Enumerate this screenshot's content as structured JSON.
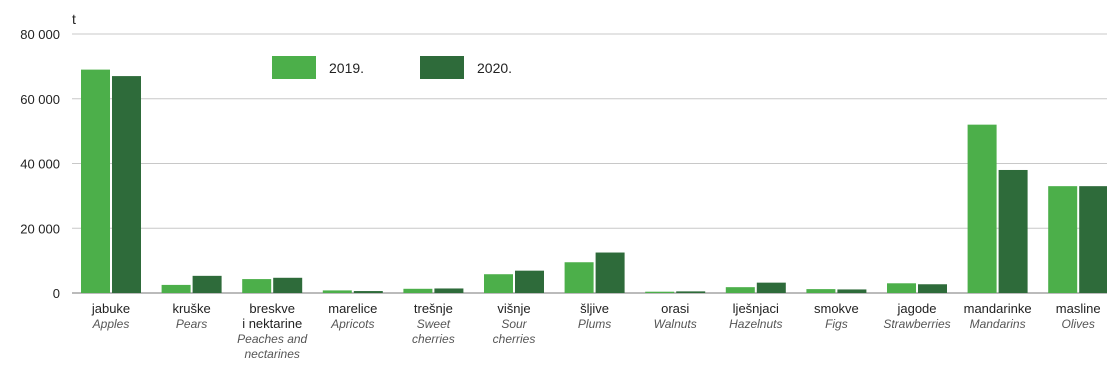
{
  "chart_data": {
    "type": "bar",
    "unit_label": "t",
    "ylim": [
      0,
      80000
    ],
    "yticks": [
      {
        "value": 0,
        "label": "0"
      },
      {
        "value": 20000,
        "label": "20 000"
      },
      {
        "value": 40000,
        "label": "40 000"
      },
      {
        "value": 60000,
        "label": "60 000"
      },
      {
        "value": 80000,
        "label": "80 000"
      }
    ],
    "grid": true,
    "legend_position": "top-center",
    "categories": [
      {
        "hr": [
          "jabuke"
        ],
        "en": [
          "Apples"
        ]
      },
      {
        "hr": [
          "kruške"
        ],
        "en": [
          "Pears"
        ]
      },
      {
        "hr": [
          "breskve",
          "i nektarine"
        ],
        "en": [
          "Peaches and",
          "nectarines"
        ]
      },
      {
        "hr": [
          "marelice"
        ],
        "en": [
          "Apricots"
        ]
      },
      {
        "hr": [
          "trešnje"
        ],
        "en": [
          "Sweet",
          "cherries"
        ]
      },
      {
        "hr": [
          "višnje"
        ],
        "en": [
          "Sour",
          "cherries"
        ]
      },
      {
        "hr": [
          "šljive"
        ],
        "en": [
          "Plums"
        ]
      },
      {
        "hr": [
          "orasi"
        ],
        "en": [
          "Walnuts"
        ]
      },
      {
        "hr": [
          "lješnjaci"
        ],
        "en": [
          "Hazelnuts"
        ]
      },
      {
        "hr": [
          "smokve"
        ],
        "en": [
          "Figs"
        ]
      },
      {
        "hr": [
          "jagode"
        ],
        "en": [
          "Strawberries"
        ]
      },
      {
        "hr": [
          "mandarinke"
        ],
        "en": [
          "Mandarins"
        ]
      },
      {
        "hr": [
          "masline"
        ],
        "en": [
          "Olives"
        ]
      }
    ],
    "series": [
      {
        "name": "2019.",
        "color": "#4caf4a",
        "values": [
          69000,
          2500,
          4300,
          800,
          1300,
          5800,
          9500,
          400,
          1800,
          1200,
          3000,
          52000,
          33000
        ]
      },
      {
        "name": "2020.",
        "color": "#2e6b3a",
        "values": [
          67000,
          5300,
          4700,
          600,
          1400,
          6900,
          12500,
          500,
          3200,
          1100,
          2700,
          38000,
          33000
        ]
      }
    ]
  }
}
